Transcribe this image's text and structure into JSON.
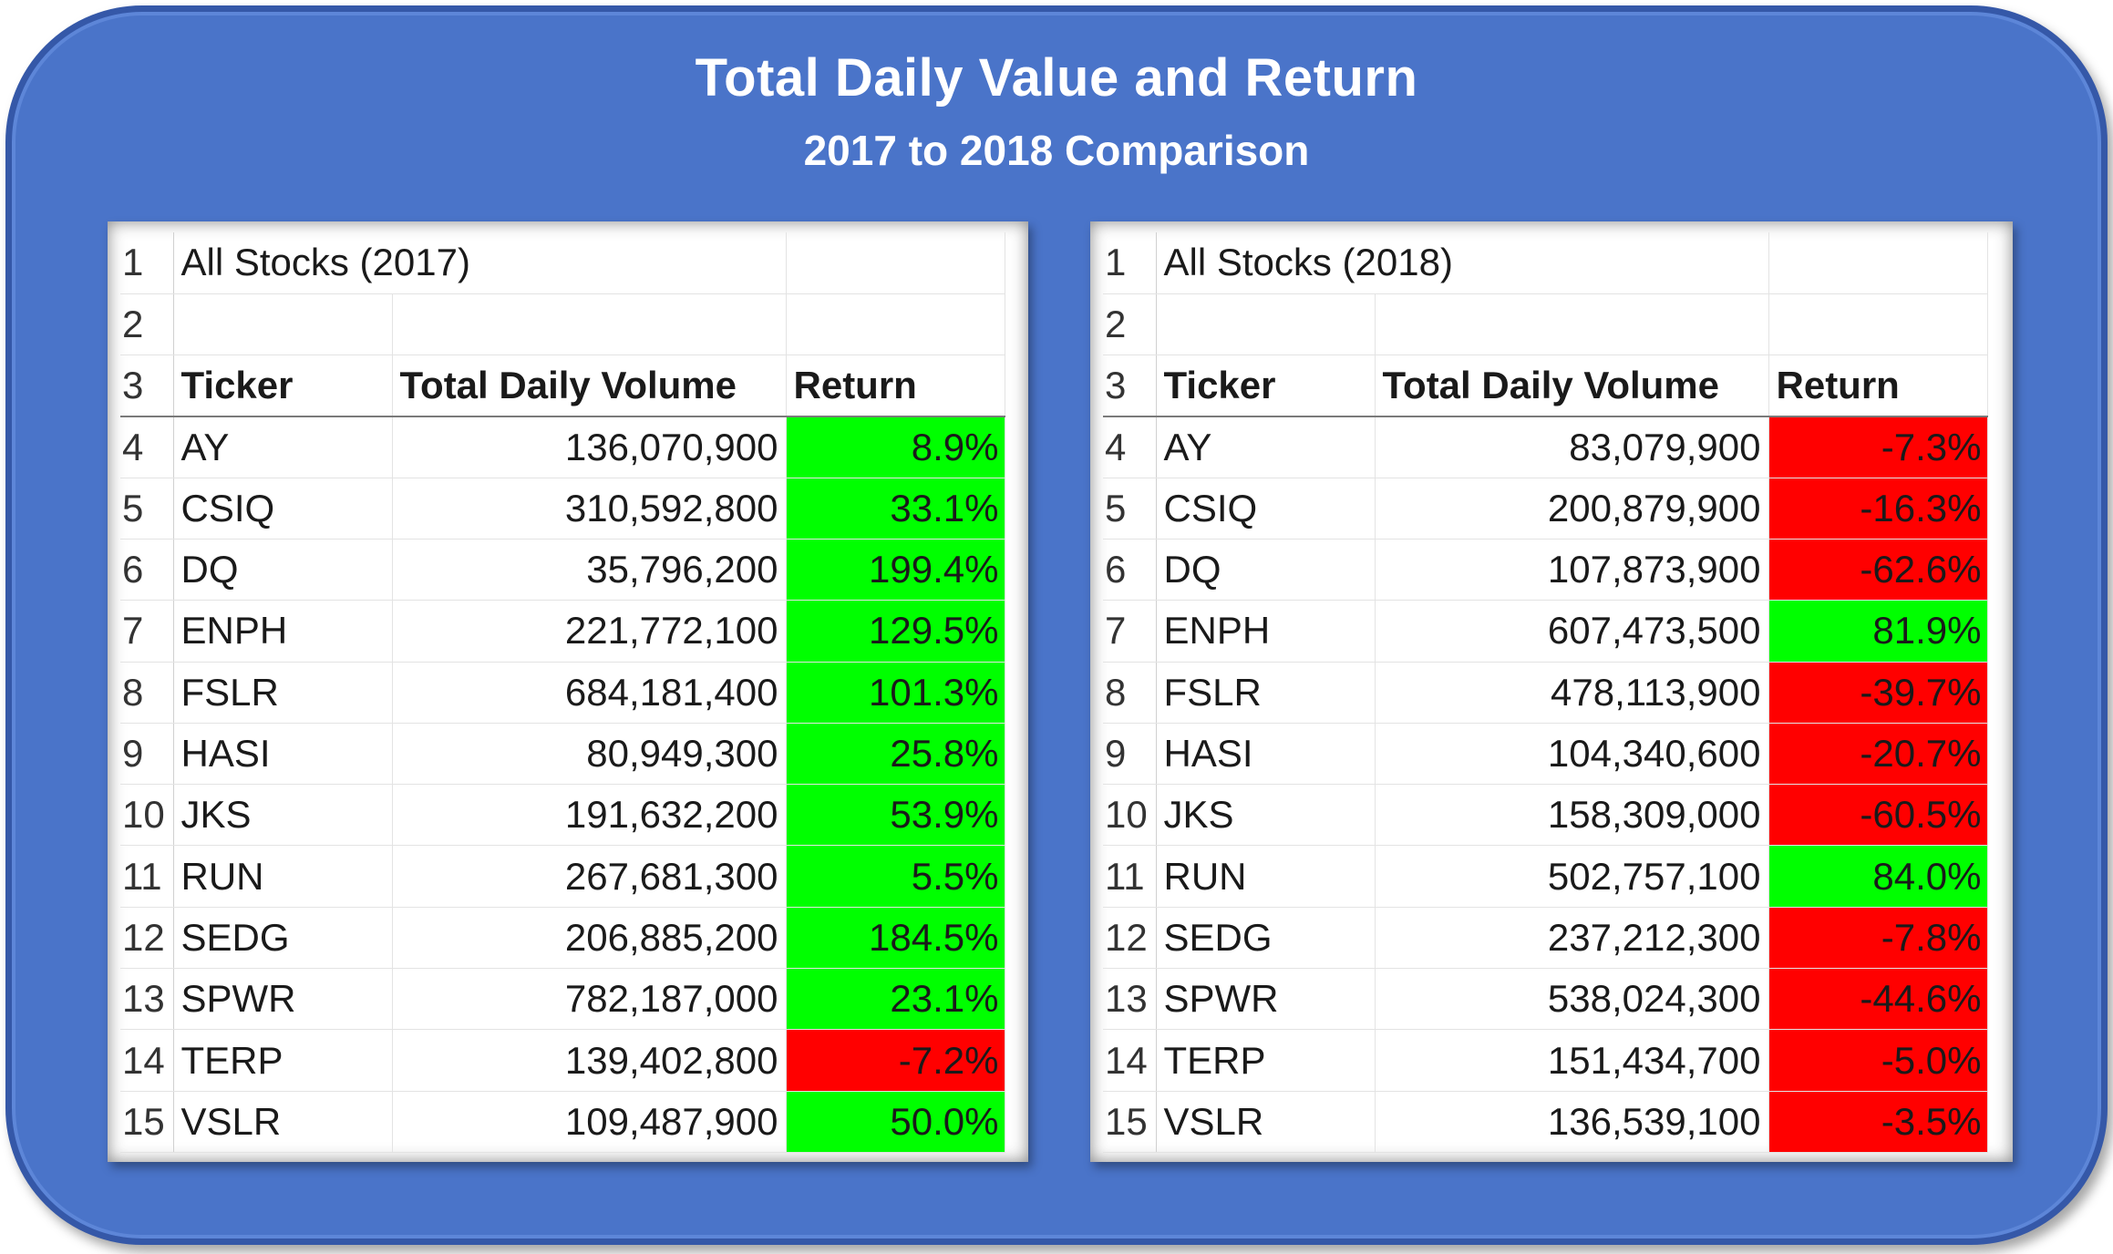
{
  "title": "Total Daily Value and Return",
  "subtitle": "2017 to 2018 Comparison",
  "colors": {
    "background": "#4a74c9",
    "positive": "#00ff00",
    "negative": "#ff0000"
  },
  "tables": [
    {
      "heading": "All Stocks (2017)",
      "row_numbers": [
        "1",
        "2",
        "3",
        "4",
        "5",
        "6",
        "7",
        "8",
        "9",
        "10",
        "11",
        "12",
        "13",
        "14",
        "15"
      ],
      "headers": {
        "ticker": "Ticker",
        "volume": "Total Daily Volume",
        "return": "Return"
      },
      "rows": [
        {
          "ticker": "AY",
          "volume": "136,070,900",
          "return": "8.9%"
        },
        {
          "ticker": "CSIQ",
          "volume": "310,592,800",
          "return": "33.1%"
        },
        {
          "ticker": "DQ",
          "volume": "35,796,200",
          "return": "199.4%"
        },
        {
          "ticker": "ENPH",
          "volume": "221,772,100",
          "return": "129.5%"
        },
        {
          "ticker": "FSLR",
          "volume": "684,181,400",
          "return": "101.3%"
        },
        {
          "ticker": "HASI",
          "volume": "80,949,300",
          "return": "25.8%"
        },
        {
          "ticker": "JKS",
          "volume": "191,632,200",
          "return": "53.9%"
        },
        {
          "ticker": "RUN",
          "volume": "267,681,300",
          "return": "5.5%"
        },
        {
          "ticker": "SEDG",
          "volume": "206,885,200",
          "return": "184.5%"
        },
        {
          "ticker": "SPWR",
          "volume": "782,187,000",
          "return": "23.1%"
        },
        {
          "ticker": "TERP",
          "volume": "139,402,800",
          "return": "-7.2%"
        },
        {
          "ticker": "VSLR",
          "volume": "109,487,900",
          "return": "50.0%"
        }
      ]
    },
    {
      "heading": "All Stocks (2018)",
      "row_numbers": [
        "1",
        "2",
        "3",
        "4",
        "5",
        "6",
        "7",
        "8",
        "9",
        "10",
        "11",
        "12",
        "13",
        "14",
        "15"
      ],
      "headers": {
        "ticker": "Ticker",
        "volume": "Total Daily Volume",
        "return": "Return"
      },
      "rows": [
        {
          "ticker": "AY",
          "volume": "83,079,900",
          "return": "-7.3%"
        },
        {
          "ticker": "CSIQ",
          "volume": "200,879,900",
          "return": "-16.3%"
        },
        {
          "ticker": "DQ",
          "volume": "107,873,900",
          "return": "-62.6%"
        },
        {
          "ticker": "ENPH",
          "volume": "607,473,500",
          "return": "81.9%"
        },
        {
          "ticker": "FSLR",
          "volume": "478,113,900",
          "return": "-39.7%"
        },
        {
          "ticker": "HASI",
          "volume": "104,340,600",
          "return": "-20.7%"
        },
        {
          "ticker": "JKS",
          "volume": "158,309,000",
          "return": "-60.5%"
        },
        {
          "ticker": "RUN",
          "volume": "502,757,100",
          "return": "84.0%"
        },
        {
          "ticker": "SEDG",
          "volume": "237,212,300",
          "return": "-7.8%"
        },
        {
          "ticker": "SPWR",
          "volume": "538,024,300",
          "return": "-44.6%"
        },
        {
          "ticker": "TERP",
          "volume": "151,434,700",
          "return": "-5.0%"
        },
        {
          "ticker": "VSLR",
          "volume": "136,539,100",
          "return": "-3.5%"
        }
      ]
    }
  ]
}
